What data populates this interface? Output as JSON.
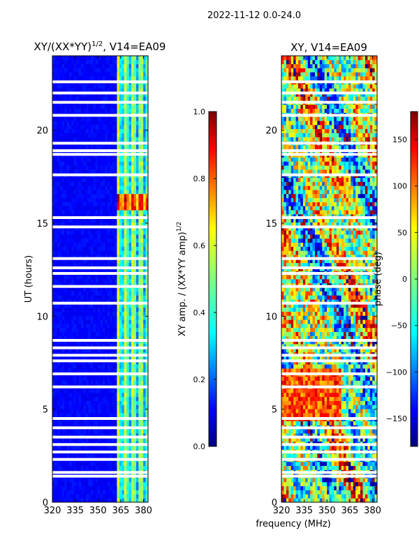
{
  "suptitle": "2022-11-12 0.0-24.0",
  "shared_xlabel": "frequency (MHz)",
  "colors": {
    "jet": [
      "#00007f",
      "#0000ff",
      "#007fff",
      "#00ffff",
      "#7fff7f",
      "#ffff00",
      "#ff7f00",
      "#ff0000",
      "#7f0000"
    ],
    "gap": "#ffffff",
    "axis": "#000000"
  },
  "chart_data": [
    {
      "type": "heatmap",
      "title": "XY/(XX*YY)^1/2, V14=EA09",
      "title_main": "XY/(XX*YY)",
      "title_sup": "1/2",
      "title_rest": ", V14=EA09",
      "xlabel": "",
      "ylabel": "UT (hours)",
      "xlim": [
        320,
        383
      ],
      "ylim": [
        0,
        24
      ],
      "xticks": [
        320,
        335,
        350,
        365,
        380
      ],
      "yticks": [
        0,
        5,
        10,
        15,
        20
      ],
      "xtick_labels": [
        "320",
        "335",
        "350",
        "365",
        "380"
      ],
      "ytick_labels": [
        "0",
        "5",
        "10",
        "15",
        "20"
      ],
      "colorbar": {
        "label": "XY amp. / (XX*YY amp)^1/2",
        "label_main": "XY amp. / (XX*YY amp)",
        "label_sup": "1/2",
        "range": [
          0.0,
          1.0
        ],
        "ticks": [
          0.0,
          0.2,
          0.4,
          0.6,
          0.8,
          1.0
        ],
        "tick_labels": [
          "0.0",
          "0.2",
          "0.4",
          "0.6",
          "0.8",
          "1.0"
        ]
      }
    },
    {
      "type": "heatmap",
      "title": "XY, V14=EA09",
      "xlabel": "frequency (MHz)",
      "ylabel": "",
      "xlim": [
        320,
        383
      ],
      "ylim": [
        0,
        24
      ],
      "xticks": [
        320,
        335,
        350,
        365,
        380
      ],
      "yticks": [
        0,
        5,
        10,
        15,
        20
      ],
      "xtick_labels": [
        "320",
        "335",
        "350",
        "365",
        "380"
      ],
      "ytick_labels": [
        "0",
        "5",
        "10",
        "15",
        "20"
      ],
      "colorbar": {
        "label": "phase (deg)",
        "range": [
          -180,
          180
        ],
        "ticks": [
          -150,
          -100,
          -50,
          0,
          50,
          100,
          150
        ],
        "tick_labels": [
          "−150",
          "−100",
          "−50",
          "0",
          "50",
          "100",
          "150"
        ]
      }
    }
  ],
  "gap_hours": [
    1.4,
    1.6,
    2.3,
    2.7,
    3.1,
    3.5,
    4.0,
    4.5,
    6.2,
    6.9,
    7.6,
    7.9,
    8.3,
    8.7,
    10.7,
    11.6,
    12.3,
    12.6,
    13.1,
    14.8,
    15.3,
    17.6,
    18.7,
    18.9,
    19.3,
    20.8,
    21.5,
    22.0,
    22.6
  ]
}
